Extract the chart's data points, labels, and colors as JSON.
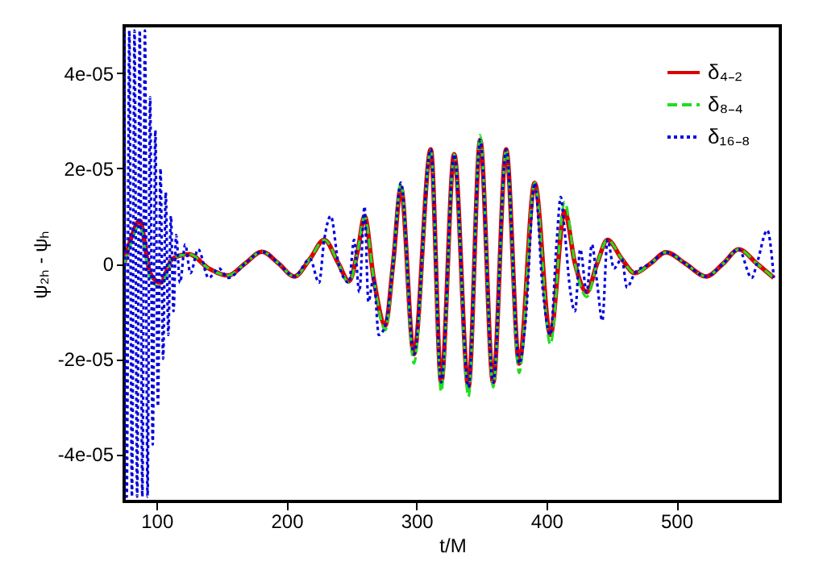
{
  "chart_data": {
    "type": "line",
    "xlabel": "t/M",
    "ylabel": "ψ₂ₕ - ψₕ",
    "xlim": [
      75,
      580
    ],
    "ylim": [
      -5e-05,
      5e-05
    ],
    "xticks": [
      100,
      200,
      300,
      400,
      500
    ],
    "yticks": [
      {
        "value": -4e-05,
        "label": "-4e-05"
      },
      {
        "value": -2e-05,
        "label": "-2e-05"
      },
      {
        "value": 0,
        "label": "0"
      },
      {
        "value": 2e-05,
        "label": "2e-05"
      },
      {
        "value": 4e-05,
        "label": "4e-05"
      }
    ],
    "grid": false,
    "legend": "top right",
    "series": [
      {
        "name": "δ₄₋₂",
        "color": "#dd0000",
        "line_style": "solid",
        "x": [
          75,
          80,
          87,
          95,
          103,
          112,
          125,
          140,
          155,
          168,
          181,
          194,
          206,
          218,
          229,
          240,
          248,
          255,
          260,
          267,
          276,
          282,
          288,
          298,
          311,
          319,
          329,
          340,
          349,
          359,
          369,
          379,
          391,
          403,
          414,
          422,
          431,
          439,
          447,
          458,
          468,
          480,
          492,
          507,
          523,
          536,
          548,
          562,
          575
        ],
        "values": [
          0,
          5e-06,
          9e-06,
          -2e-06,
          -4e-06,
          1e-06,
          2e-06,
          -1e-06,
          -2.5e-06,
          0,
          2.5e-06,
          0,
          -2.7e-06,
          1e-06,
          5e-06,
          0,
          -3.7e-06,
          3e-06,
          1e-05,
          -3e-06,
          -1.3e-05,
          0,
          1.6e-05,
          -1.9e-05,
          2.4e-05,
          -2.5e-05,
          2.3e-05,
          -2.6e-05,
          2.6e-05,
          -2.5e-05,
          2.4e-05,
          -2.1e-05,
          1.7e-05,
          -1.5e-05,
          1.1e-05,
          0,
          -6e-06,
          0,
          5e-06,
          1e-06,
          -2e-06,
          0,
          2.4e-06,
          0,
          -2.7e-06,
          0,
          3e-06,
          0,
          -3e-06
        ]
      },
      {
        "name": "δ₈₋₄",
        "color": "#22dd22",
        "line_style": "dashed",
        "x": [
          75,
          80,
          87,
          95,
          103,
          112,
          125,
          140,
          155,
          168,
          181,
          194,
          206,
          218,
          229,
          240,
          248,
          255,
          260,
          267,
          276,
          282,
          288,
          298,
          311,
          319,
          329,
          340,
          349,
          359,
          369,
          379,
          391,
          403,
          414,
          422,
          431,
          439,
          447,
          458,
          468,
          480,
          492,
          507,
          523,
          536,
          548,
          562,
          575
        ],
        "values": [
          0,
          4e-06,
          8e-06,
          -3e-06,
          -5e-06,
          1e-06,
          2e-06,
          -1e-06,
          -2.5e-06,
          0,
          2.5e-06,
          0,
          -2.7e-06,
          1e-06,
          5e-06,
          0,
          -4e-06,
          3e-06,
          1e-05,
          -3e-06,
          -1.4e-05,
          0,
          1.7e-05,
          -2.1e-05,
          2.4e-05,
          -2.7e-05,
          2.3e-05,
          -2.8e-05,
          2.7e-05,
          -2.6e-05,
          2.4e-05,
          -2.3e-05,
          1.7e-05,
          -1.7e-05,
          1.3e-05,
          0,
          -7e-06,
          0,
          5e-06,
          1e-06,
          -2e-06,
          0,
          2.4e-06,
          0,
          -2.7e-06,
          0,
          3e-06,
          0,
          -3e-06
        ]
      },
      {
        "name": "δ₁₆₋₈",
        "color": "#0000dd",
        "line_style": "dotted",
        "x": [
          75,
          77,
          79,
          81,
          83,
          85,
          87,
          89,
          91,
          93,
          95,
          97,
          99,
          101,
          103,
          105,
          107,
          109,
          111,
          113,
          115,
          118,
          122,
          126,
          132,
          140,
          148,
          155,
          168,
          181,
          194,
          206,
          218,
          225,
          229,
          234,
          240,
          248,
          252,
          256,
          260,
          263,
          267,
          271,
          276,
          282,
          288,
          298,
          311,
          319,
          329,
          340,
          349,
          359,
          369,
          379,
          384,
          391,
          397,
          403,
          408,
          411,
          414,
          418,
          422,
          426,
          431,
          435,
          439,
          443,
          447,
          452,
          458,
          462,
          468,
          480,
          492,
          507,
          523,
          536,
          548,
          558,
          562,
          570,
          575
        ],
        "values": [
          4.9e-05,
          -4.9e-05,
          4.9e-05,
          -4.9e-05,
          4.9e-05,
          -4.9e-05,
          4.9e-05,
          -4.9e-05,
          4.9e-05,
          -4.9e-05,
          3.5e-05,
          -3.8e-05,
          2.8e-05,
          -3e-05,
          2e-05,
          -2e-05,
          1.5e-05,
          -1.5e-05,
          1e-05,
          -1e-05,
          6e-06,
          -4e-06,
          4e-06,
          -2e-06,
          3e-06,
          -3e-06,
          -1e-06,
          -3e-06,
          0,
          2.5e-06,
          0,
          -2.7e-06,
          1e-06,
          -4e-06,
          5e-06,
          1e-05,
          0,
          -4e-06,
          5e-06,
          -6e-06,
          1.2e-05,
          -8e-06,
          -3e-06,
          -1.5e-05,
          -1.3e-05,
          0,
          1.7e-05,
          -1.9e-05,
          2.4e-05,
          -2.5e-05,
          2.3e-05,
          -2.6e-05,
          2.6e-05,
          -2.5e-05,
          2.4e-05,
          -2.1e-05,
          -1.2e-05,
          1.7e-05,
          -5e-06,
          -1.5e-05,
          5e-06,
          1.4e-05,
          7e-06,
          -5e-06,
          -1e-05,
          3e-06,
          -6e-06,
          4e-06,
          -4e-06,
          -1.2e-05,
          5e-06,
          -1e-06,
          1e-06,
          -5e-06,
          -2e-06,
          0,
          2.4e-06,
          0,
          -2.7e-06,
          0,
          3e-06,
          -3e-06,
          0,
          7e-06,
          -3e-06
        ]
      }
    ]
  }
}
